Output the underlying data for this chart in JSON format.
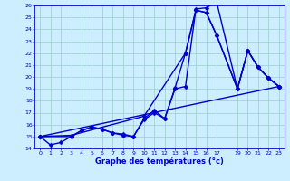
{
  "title": "",
  "xlabel": "Graphe des températures (°c)",
  "ylabel": "",
  "xlim": [
    -0.5,
    23.5
  ],
  "ylim": [
    14,
    26
  ],
  "xtick_values": [
    0,
    1,
    2,
    3,
    4,
    5,
    6,
    7,
    8,
    9,
    10,
    11,
    12,
    13,
    14,
    15,
    16,
    17,
    19,
    20,
    21,
    22,
    23
  ],
  "xtick_labels": [
    "0",
    "1",
    "2",
    "3",
    "4",
    "5",
    "6",
    "7",
    "8",
    "9",
    "10",
    "11",
    "12",
    "13",
    "14",
    "15",
    "16",
    "17",
    "19",
    "20",
    "21",
    "22",
    "23"
  ],
  "yticks": [
    14,
    15,
    16,
    17,
    18,
    19,
    20,
    21,
    22,
    23,
    24,
    25,
    26
  ],
  "background_color": "#cceeff",
  "grid_color": "#99cccc",
  "line_color": "#0000cc",
  "line_width": 1.0,
  "marker": "D",
  "marker_size": 2.5,
  "curves": [
    {
      "x": [
        0,
        1,
        2,
        3,
        4,
        5,
        6,
        7,
        8,
        9,
        10,
        11,
        12,
        13,
        14,
        15,
        16,
        17,
        19,
        20,
        21,
        22,
        23
      ],
      "y": [
        15.0,
        14.3,
        14.5,
        15.0,
        15.5,
        15.8,
        15.6,
        15.3,
        15.1,
        15.0,
        16.4,
        17.0,
        16.5,
        19.0,
        19.2,
        25.7,
        25.8,
        26.3,
        19.0,
        22.2,
        20.8,
        19.9,
        19.2
      ]
    },
    {
      "x": [
        0,
        3,
        4,
        5,
        6,
        7,
        8,
        9,
        10,
        11,
        12,
        13,
        14,
        15,
        16,
        17,
        19,
        20,
        21,
        22,
        23
      ],
      "y": [
        15.0,
        15.0,
        15.5,
        15.8,
        15.6,
        15.3,
        15.2,
        15.0,
        16.5,
        17.2,
        16.5,
        19.1,
        22.0,
        25.6,
        25.4,
        23.5,
        19.0,
        22.2,
        20.8,
        19.9,
        19.2
      ]
    },
    {
      "x": [
        0,
        3,
        10,
        14,
        15,
        16,
        17,
        19,
        20,
        21,
        22,
        23
      ],
      "y": [
        15.0,
        15.1,
        16.7,
        22.0,
        25.6,
        25.4,
        23.5,
        19.0,
        22.2,
        20.8,
        19.9,
        19.2
      ]
    },
    {
      "x": [
        0,
        23
      ],
      "y": [
        15.0,
        19.2
      ]
    }
  ]
}
